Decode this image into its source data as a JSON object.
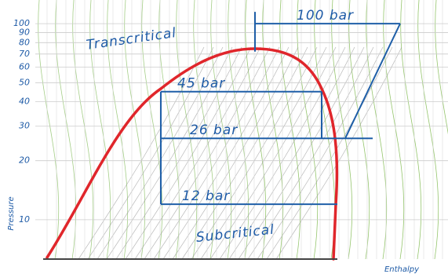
{
  "chart_data": {
    "type": "line",
    "ylabel": "Pressure",
    "xlabel": "Enthalpy",
    "ylog": true,
    "grid": true,
    "ylim": [
      6.3,
      132
    ],
    "yticks": [
      10,
      20,
      30,
      40,
      50,
      60,
      70,
      80,
      90,
      100
    ],
    "annotations": [
      "Transcritical",
      "Subcritical"
    ],
    "cycles": {
      "color": "#1f5fa8",
      "values": [
        12,
        26,
        45,
        100
      ],
      "value_labels": [
        "12 bar",
        "26 bar",
        "45 bar",
        "100 bar"
      ]
    },
    "dome_color": "#e0262b"
  }
}
